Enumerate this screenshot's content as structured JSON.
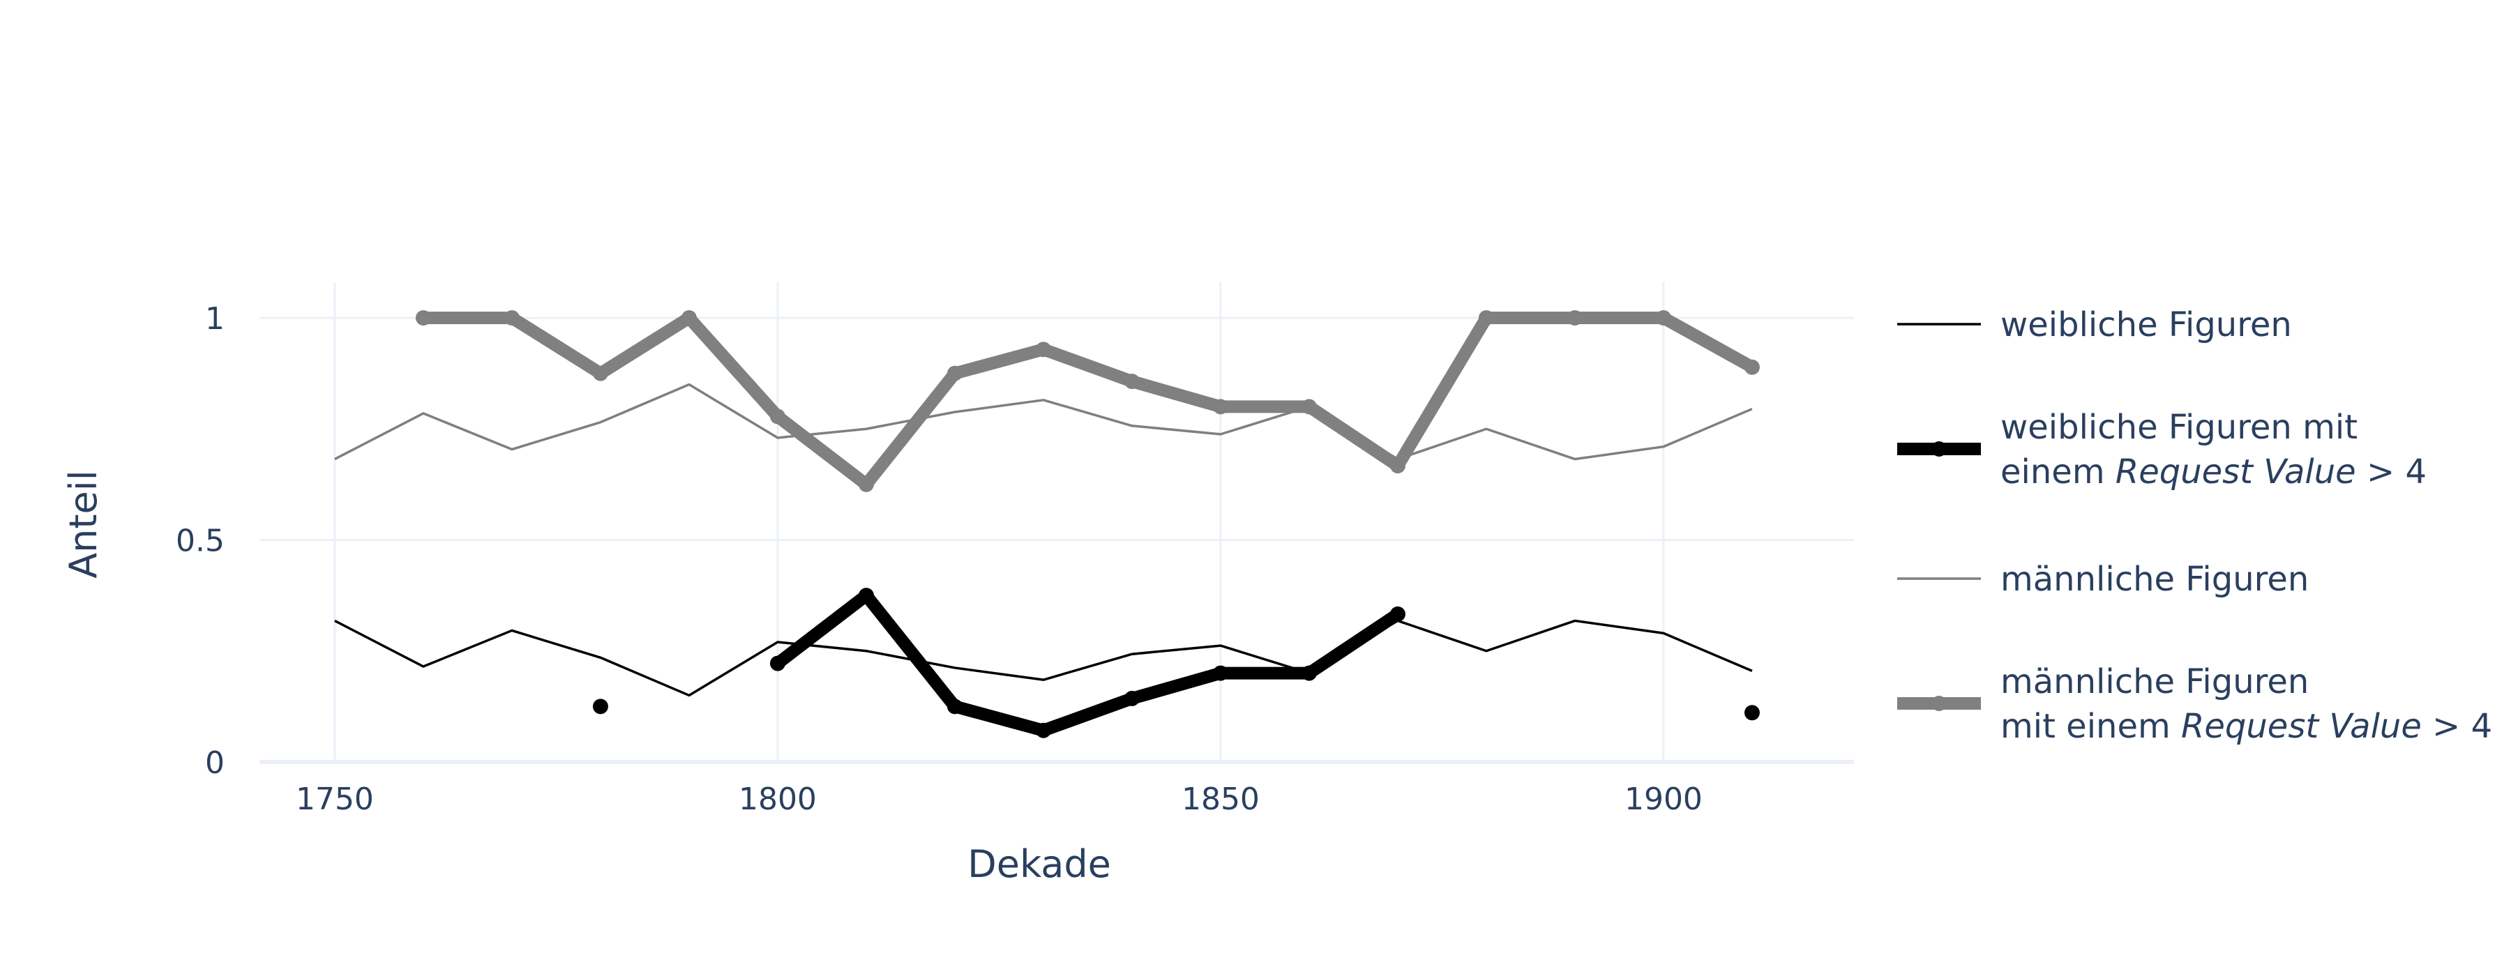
{
  "chart_data": {
    "type": "line",
    "title": "",
    "xlabel": "Dekade",
    "ylabel": "Anteil",
    "xlim": [
      1741.5,
      1921.5
    ],
    "ylim": [
      0,
      1.08
    ],
    "x_ticks": [
      1750,
      1800,
      1850,
      1900
    ],
    "x_tick_labels": [
      "1750",
      "1800",
      "1850",
      "1900"
    ],
    "y_ticks": [
      0,
      0.5,
      1
    ],
    "y_tick_labels": [
      "0",
      "0.5",
      "1"
    ],
    "grid": true,
    "legend_position": "right",
    "series": [
      {
        "name": "weibliche Figuren",
        "legend_lines": [
          [
            {
              "t": "weibliche Figuren"
            }
          ]
        ],
        "color": "#000000",
        "style": "thin",
        "x": [
          1750,
          1760,
          1770,
          1780,
          1790,
          1800,
          1810,
          1820,
          1830,
          1840,
          1850,
          1860,
          1870,
          1880,
          1890,
          1900,
          1910
        ],
        "y": [
          0.318,
          0.215,
          0.296,
          0.235,
          0.15,
          0.27,
          0.25,
          0.212,
          0.185,
          0.243,
          0.262,
          0.2,
          0.318,
          0.25,
          0.318,
          0.29,
          0.205
        ]
      },
      {
        "name": "weibliche Figuren mit einem Request Value > 4",
        "legend_lines": [
          [
            {
              "t": "weibliche Figuren mit"
            }
          ],
          [
            {
              "t": "einem "
            },
            {
              "t": "Request Value",
              "i": true
            },
            {
              "t": " > 4"
            }
          ]
        ],
        "color": "#000000",
        "style": "thick",
        "x": [
          1760,
          1770,
          1780,
          1790,
          1800,
          1810,
          1820,
          1830,
          1840,
          1850,
          1860,
          1870,
          1880,
          1890,
          1900,
          1910
        ],
        "y": [
          null,
          null,
          0.125,
          null,
          0.222,
          0.375,
          0.125,
          0.071,
          0.143,
          0.2,
          0.2,
          0.333,
          null,
          null,
          null,
          0.111
        ]
      },
      {
        "name": "männliche Figuren",
        "legend_lines": [
          [
            {
              "t": "männliche Figuren"
            }
          ]
        ],
        "color": "#7f7f7f",
        "style": "thin",
        "x": [
          1750,
          1760,
          1770,
          1780,
          1790,
          1800,
          1810,
          1820,
          1830,
          1840,
          1850,
          1860,
          1870,
          1880,
          1890,
          1900,
          1910
        ],
        "y": [
          0.682,
          0.785,
          0.704,
          0.765,
          0.85,
          0.73,
          0.75,
          0.788,
          0.815,
          0.757,
          0.738,
          0.8,
          0.682,
          0.75,
          0.682,
          0.71,
          0.795
        ]
      },
      {
        "name": "männliche Figuren mit einem Request Value > 4",
        "legend_lines": [
          [
            {
              "t": "männliche Figuren"
            }
          ],
          [
            {
              "t": "mit einem "
            },
            {
              "t": "Request Value",
              "i": true
            },
            {
              "t": " > 4"
            }
          ]
        ],
        "color": "#808080",
        "style": "thick",
        "x": [
          1760,
          1770,
          1780,
          1790,
          1800,
          1810,
          1820,
          1830,
          1840,
          1850,
          1860,
          1870,
          1880,
          1890,
          1900,
          1910
        ],
        "y": [
          1,
          1,
          0.875,
          1,
          0.778,
          0.625,
          0.875,
          0.929,
          0.857,
          0.8,
          0.8,
          0.667,
          1,
          1,
          1,
          0.889
        ]
      }
    ]
  }
}
